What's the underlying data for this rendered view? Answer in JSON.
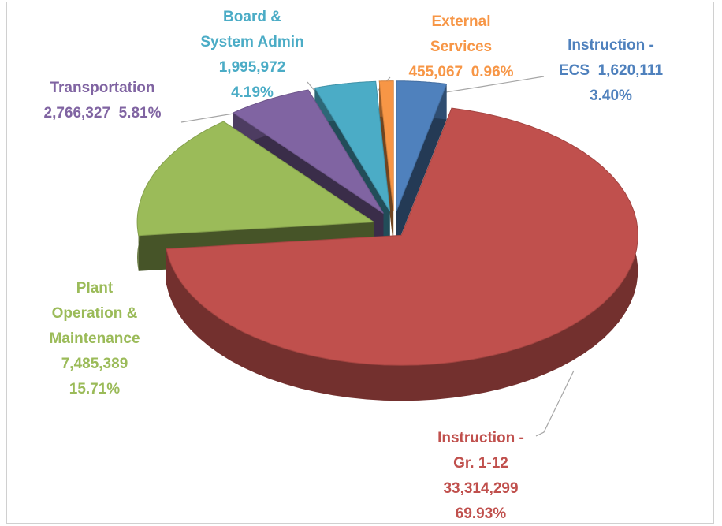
{
  "chart_data": {
    "type": "pie",
    "categories": [
      "Instruction -\nECS",
      "Instruction -\nGr. 1-12",
      "Plant\nOperation &\nMaintenance",
      "Transportation",
      "Board &\nSystem Admin",
      "External\nServices"
    ],
    "values": [
      1620111,
      33314299,
      7485389,
      2766327,
      1995972,
      455067
    ],
    "value_labels": [
      "1,620,111",
      "33,314,299",
      "7,485,389",
      "2,766,327",
      "1,995,972",
      "455,067"
    ],
    "percents": [
      3.4,
      69.93,
      15.71,
      5.81,
      4.19,
      0.96
    ],
    "percent_labels": [
      "3.40%",
      "69.93%",
      "15.71%",
      "5.81%",
      "4.19%",
      "0.96%"
    ],
    "colors": [
      "#4f81bd",
      "#c0504d",
      "#9bbb59",
      "#8064a2",
      "#4bacc6",
      "#f79646"
    ]
  }
}
